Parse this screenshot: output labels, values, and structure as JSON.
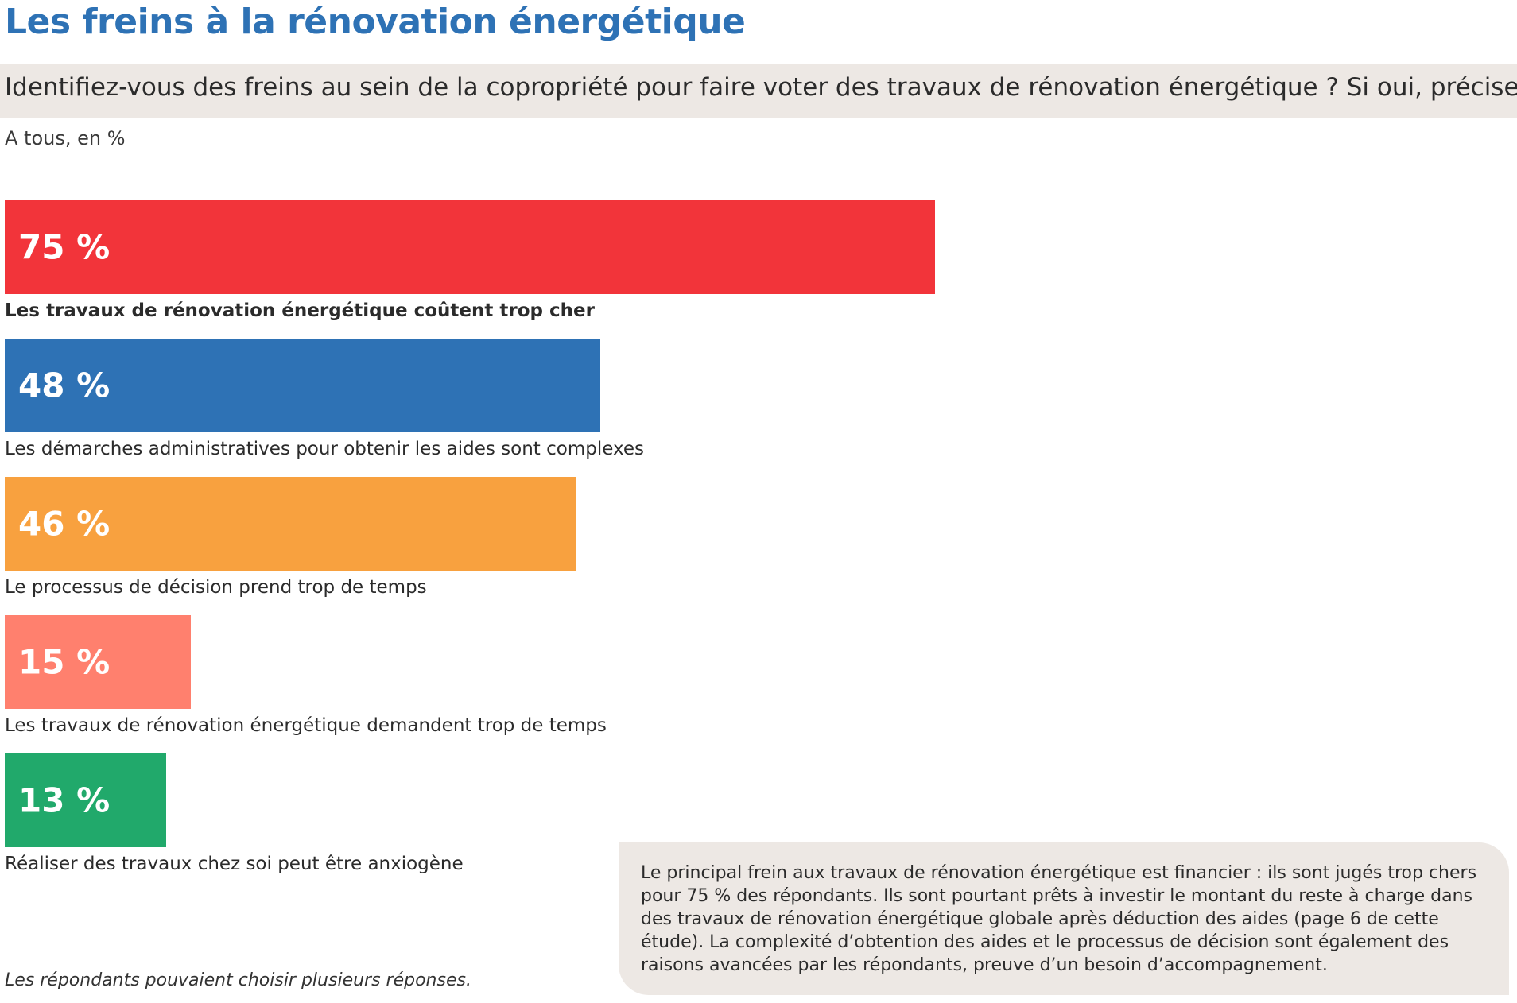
{
  "header": {
    "title": "Les freins à la rénovation énergétique",
    "question": "Identifiez-vous des freins au sein de la copropriété pour faire voter des travaux de rénovation énergétique ? Si oui, précisez lesque",
    "base": "A tous, en %"
  },
  "chart_data": {
    "type": "bar",
    "orientation": "horizontal",
    "categories": [
      "Les travaux de rénovation énergétique coûtent trop cher",
      "Les démarches administratives pour obtenir les aides sont complexes",
      "Le processus de décision prend trop de temps",
      "Les travaux de rénovation énergétique demandent trop de temps",
      "Réaliser des travaux chez soi peut être anxiogène"
    ],
    "values": [
      75,
      48,
      46,
      15,
      13
    ],
    "value_labels": [
      "75 %",
      "48 %",
      "46 %",
      "15 %",
      "13 %"
    ],
    "colors": [
      "#f2343a",
      "#2e72b5",
      "#f8a13f",
      "#ff806e",
      "#21a96b"
    ],
    "bold_labels": [
      true,
      false,
      false,
      false,
      false
    ],
    "title": "",
    "xlabel": "",
    "ylabel": "",
    "xlim": [
      0,
      100
    ],
    "grid": false,
    "legend": "none"
  },
  "footnote": "Les répondants pouvaient choisir plusieurs réponses.",
  "callout": " Le principal frein aux travaux de rénovation énergétique est financier : ils sont jugés trop chers pour 75 % des répondants. Ils sont pourtant prêts à investir le montant du reste à charge dans des travaux de rénovation énergétique globale après déduction des aides (page 6 de cette étude). La complexité d’obtention des aides et le processus de décision sont également des raisons avancées par les répondants, preuve d’un besoin d’accompagnement."
}
